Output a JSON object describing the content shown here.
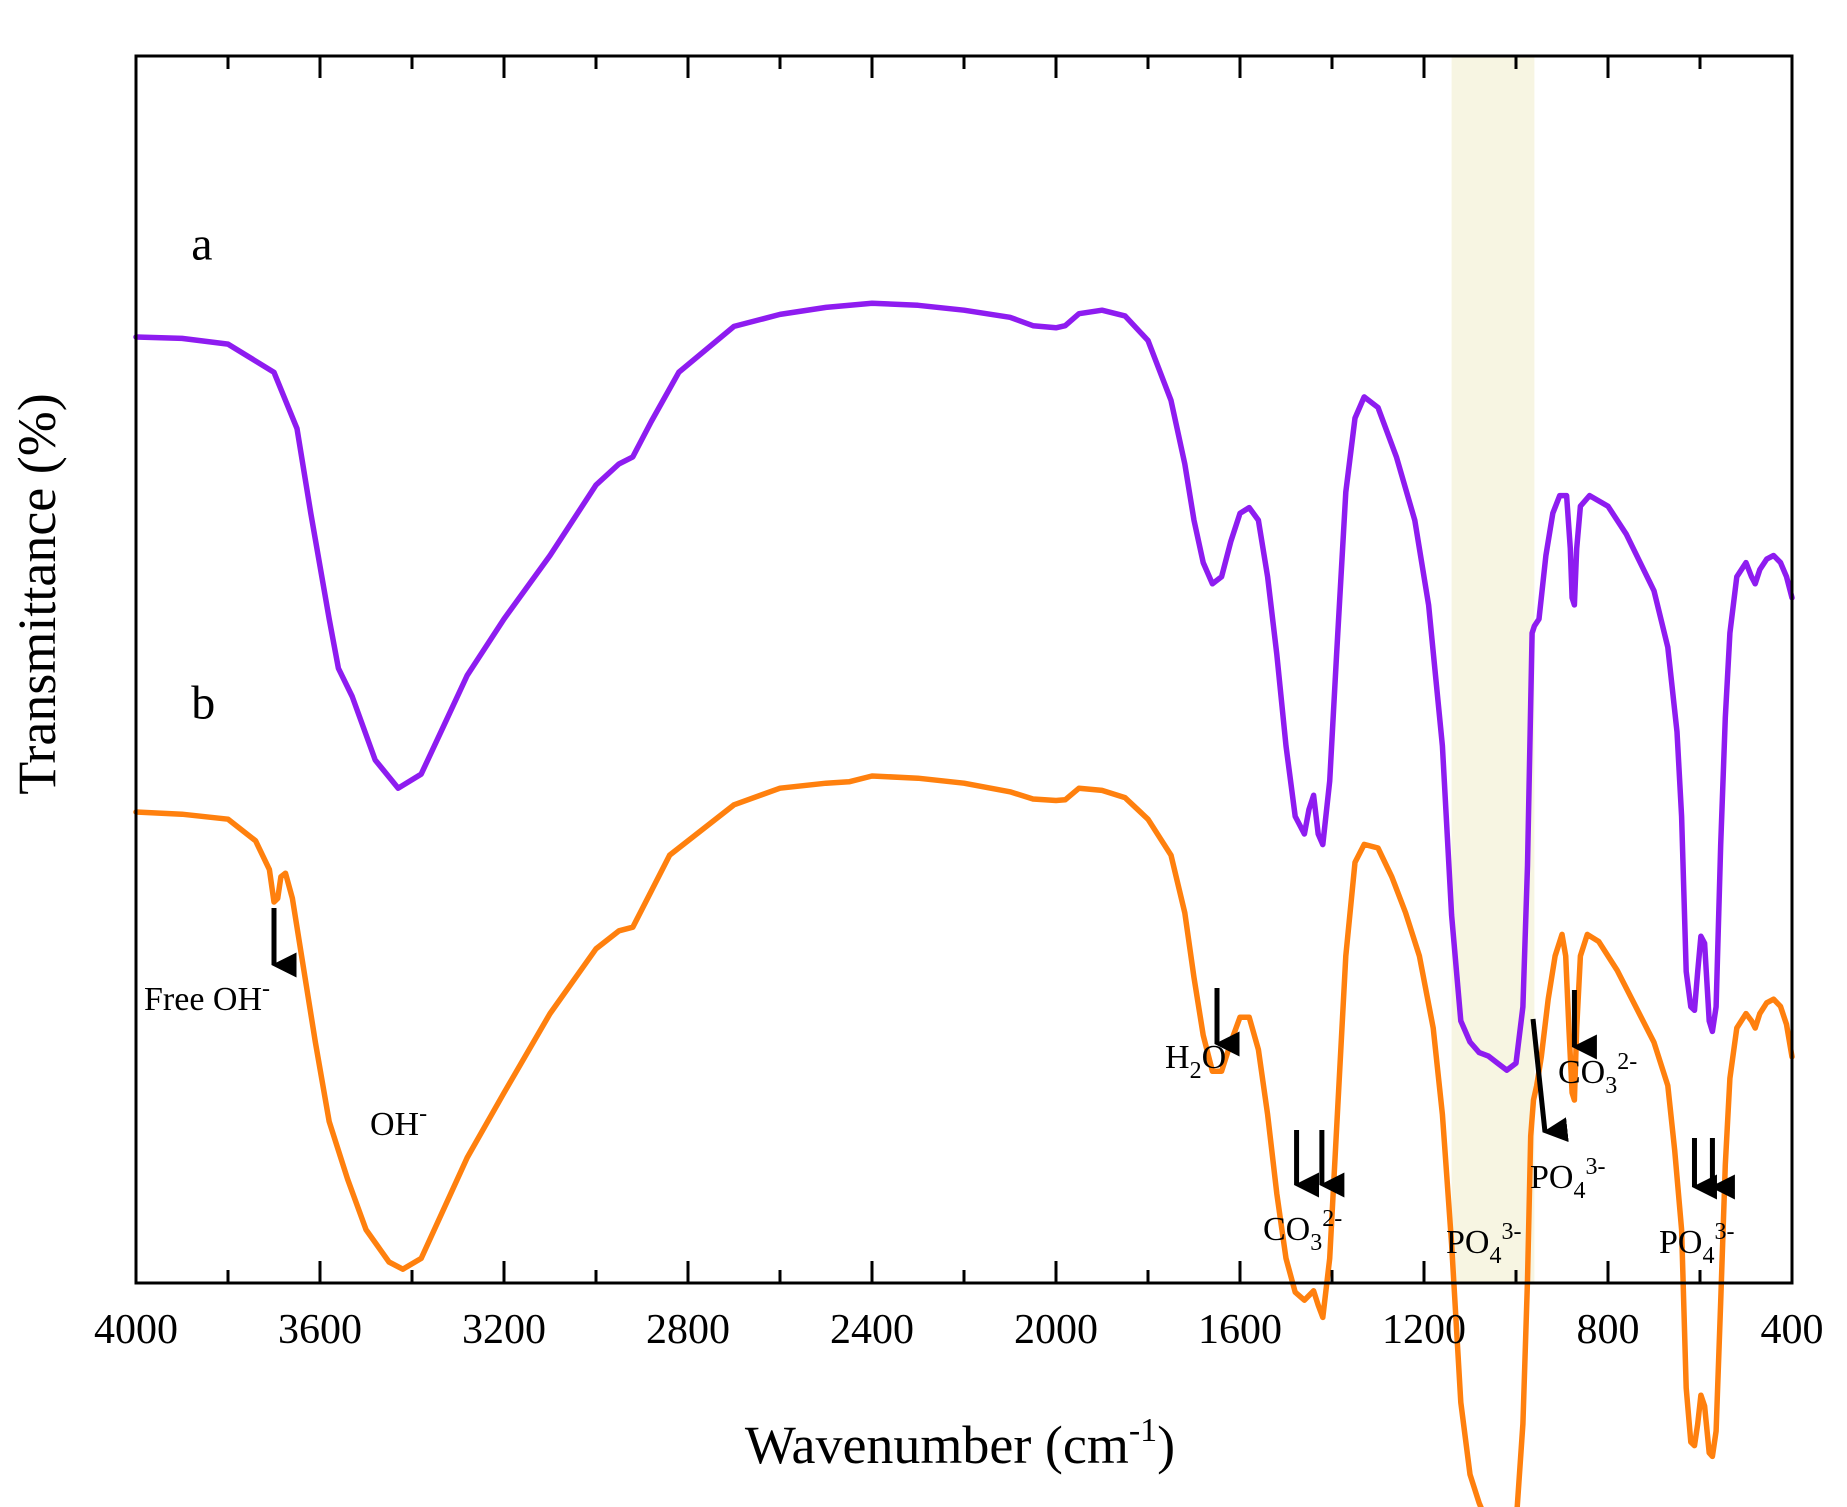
{
  "chart_data": {
    "type": "line",
    "xlabel": "Wavenumber (cm",
    "xlabel_sup": "-1",
    "xlabel_end": ")",
    "ylabel": "Transmittance (%)",
    "xlim": [
      4000,
      400
    ],
    "x_reversed": true,
    "x_ticks": [
      4000,
      3600,
      3200,
      2800,
      2400,
      2000,
      1600,
      1200,
      800,
      400
    ],
    "y_ticks_shown": false,
    "grid": false,
    "highlight_band": {
      "x_range": [
        1140,
        960
      ],
      "color": "#f7f5e2"
    },
    "series": [
      {
        "name": "a",
        "color": "#8e1cf0",
        "points": [
          [
            4000,
            100
          ],
          [
            3900,
            99.8
          ],
          [
            3800,
            99
          ],
          [
            3700,
            95
          ],
          [
            3650,
            87
          ],
          [
            3620,
            75
          ],
          [
            3580,
            60
          ],
          [
            3560,
            53
          ],
          [
            3530,
            49
          ],
          [
            3480,
            40
          ],
          [
            3430,
            36
          ],
          [
            3380,
            38
          ],
          [
            3330,
            45
          ],
          [
            3280,
            52
          ],
          [
            3200,
            60
          ],
          [
            3100,
            69
          ],
          [
            3000,
            79
          ],
          [
            2950,
            82
          ],
          [
            2920,
            83
          ],
          [
            2880,
            88
          ],
          [
            2820,
            95
          ],
          [
            2700,
            101.5
          ],
          [
            2600,
            103.2
          ],
          [
            2500,
            104.2
          ],
          [
            2400,
            104.8
          ],
          [
            2300,
            104.5
          ],
          [
            2200,
            103.8
          ],
          [
            2100,
            102.8
          ],
          [
            2050,
            101.6
          ],
          [
            2000,
            101.3
          ],
          [
            1980,
            101.6
          ],
          [
            1950,
            103.3
          ],
          [
            1900,
            103.8
          ],
          [
            1850,
            103
          ],
          [
            1800,
            99.5
          ],
          [
            1750,
            91
          ],
          [
            1720,
            82
          ],
          [
            1700,
            74
          ],
          [
            1680,
            68
          ],
          [
            1660,
            65
          ],
          [
            1640,
            66
          ],
          [
            1620,
            71
          ],
          [
            1600,
            75
          ],
          [
            1580,
            75.8
          ],
          [
            1560,
            74
          ],
          [
            1540,
            66
          ],
          [
            1520,
            55
          ],
          [
            1500,
            42
          ],
          [
            1480,
            32
          ],
          [
            1460,
            29.5
          ],
          [
            1450,
            33
          ],
          [
            1440,
            35
          ],
          [
            1430,
            29.5
          ],
          [
            1420,
            28
          ],
          [
            1405,
            37
          ],
          [
            1390,
            55
          ],
          [
            1370,
            78
          ],
          [
            1350,
            88.5
          ],
          [
            1330,
            91.5
          ],
          [
            1300,
            90
          ],
          [
            1260,
            83
          ],
          [
            1220,
            74
          ],
          [
            1190,
            62
          ],
          [
            1160,
            42
          ],
          [
            1140,
            18
          ],
          [
            1120,
            3
          ],
          [
            1100,
            0
          ],
          [
            1080,
            -1.5
          ],
          [
            1060,
            -2
          ],
          [
            1040,
            -3
          ],
          [
            1020,
            -4
          ],
          [
            1000,
            -3
          ],
          [
            985,
            5
          ],
          [
            975,
            25
          ],
          [
            968,
            48
          ],
          [
            965,
            58
          ],
          [
            960,
            59
          ],
          [
            950,
            60
          ],
          [
            935,
            69
          ],
          [
            920,
            75
          ],
          [
            905,
            77.5
          ],
          [
            890,
            77.5
          ],
          [
            882,
            70
          ],
          [
            878,
            63
          ],
          [
            873,
            62
          ],
          [
            868,
            70
          ],
          [
            860,
            76
          ],
          [
            840,
            77.5
          ],
          [
            800,
            76
          ],
          [
            760,
            72
          ],
          [
            700,
            64
          ],
          [
            670,
            56
          ],
          [
            650,
            44
          ],
          [
            640,
            32
          ],
          [
            630,
            10
          ],
          [
            620,
            5
          ],
          [
            612,
            4.5
          ],
          [
            605,
            10
          ],
          [
            598,
            15
          ],
          [
            590,
            14
          ],
          [
            580,
            3
          ],
          [
            573,
            1.5
          ],
          [
            565,
            5
          ],
          [
            555,
            28
          ],
          [
            545,
            46
          ],
          [
            535,
            58
          ],
          [
            520,
            66
          ],
          [
            500,
            68
          ],
          [
            488,
            66
          ],
          [
            480,
            65
          ],
          [
            470,
            67
          ],
          [
            455,
            68.5
          ],
          [
            440,
            69
          ],
          [
            425,
            68
          ],
          [
            412,
            66
          ],
          [
            400,
            63
          ]
        ]
      },
      {
        "name": "b",
        "color": "#ff800e",
        "points": [
          [
            4000,
            100
          ],
          [
            3900,
            99.7
          ],
          [
            3800,
            99
          ],
          [
            3740,
            96
          ],
          [
            3710,
            92
          ],
          [
            3700,
            87.5
          ],
          [
            3692,
            88
          ],
          [
            3685,
            91
          ],
          [
            3675,
            91.5
          ],
          [
            3660,
            88
          ],
          [
            3640,
            80
          ],
          [
            3610,
            68
          ],
          [
            3580,
            57
          ],
          [
            3540,
            49
          ],
          [
            3500,
            42
          ],
          [
            3450,
            37.5
          ],
          [
            3420,
            36.5
          ],
          [
            3380,
            38
          ],
          [
            3330,
            45
          ],
          [
            3280,
            52
          ],
          [
            3200,
            61
          ],
          [
            3100,
            72
          ],
          [
            3000,
            81
          ],
          [
            2950,
            83.5
          ],
          [
            2920,
            84
          ],
          [
            2880,
            89
          ],
          [
            2840,
            94
          ],
          [
            2700,
            101
          ],
          [
            2600,
            103.3
          ],
          [
            2500,
            104
          ],
          [
            2450,
            104.2
          ],
          [
            2400,
            105
          ],
          [
            2300,
            104.7
          ],
          [
            2200,
            104
          ],
          [
            2100,
            102.8
          ],
          [
            2050,
            101.8
          ],
          [
            2000,
            101.6
          ],
          [
            1980,
            101.7
          ],
          [
            1950,
            103.3
          ],
          [
            1900,
            103
          ],
          [
            1850,
            102
          ],
          [
            1800,
            99
          ],
          [
            1750,
            94
          ],
          [
            1720,
            86
          ],
          [
            1700,
            77
          ],
          [
            1680,
            69
          ],
          [
            1660,
            64
          ],
          [
            1640,
            64
          ],
          [
            1620,
            68
          ],
          [
            1600,
            71.5
          ],
          [
            1580,
            71.5
          ],
          [
            1560,
            67
          ],
          [
            1540,
            58
          ],
          [
            1520,
            47
          ],
          [
            1500,
            38
          ],
          [
            1480,
            33.3
          ],
          [
            1460,
            32.2
          ],
          [
            1440,
            33.5
          ],
          [
            1430,
            31.5
          ],
          [
            1420,
            29.8
          ],
          [
            1405,
            38
          ],
          [
            1390,
            56
          ],
          [
            1370,
            80
          ],
          [
            1350,
            93
          ],
          [
            1330,
            95.5
          ],
          [
            1300,
            95
          ],
          [
            1270,
            91
          ],
          [
            1240,
            86
          ],
          [
            1210,
            80
          ],
          [
            1180,
            70
          ],
          [
            1160,
            58
          ],
          [
            1140,
            40
          ],
          [
            1120,
            18
          ],
          [
            1100,
            8
          ],
          [
            1080,
            4
          ],
          [
            1060,
            1
          ],
          [
            1040,
            -1
          ],
          [
            1020,
            -1.5
          ],
          [
            1000,
            1
          ],
          [
            985,
            15
          ],
          [
            975,
            35
          ],
          [
            968,
            55
          ],
          [
            962,
            60
          ],
          [
            955,
            62
          ],
          [
            945,
            66
          ],
          [
            930,
            74
          ],
          [
            915,
            80
          ],
          [
            900,
            83
          ],
          [
            892,
            80
          ],
          [
            885,
            70
          ],
          [
            878,
            61
          ],
          [
            873,
            60
          ],
          [
            868,
            70
          ],
          [
            860,
            80
          ],
          [
            845,
            83
          ],
          [
            820,
            82
          ],
          [
            780,
            78
          ],
          [
            740,
            73
          ],
          [
            700,
            68
          ],
          [
            670,
            62
          ],
          [
            655,
            53
          ],
          [
            640,
            42
          ],
          [
            630,
            20
          ],
          [
            620,
            12.5
          ],
          [
            612,
            12
          ],
          [
            605,
            15
          ],
          [
            598,
            19
          ],
          [
            590,
            17.5
          ],
          [
            580,
            11
          ],
          [
            573,
            10.5
          ],
          [
            565,
            14
          ],
          [
            555,
            32
          ],
          [
            545,
            51
          ],
          [
            535,
            63
          ],
          [
            520,
            70
          ],
          [
            500,
            72
          ],
          [
            488,
            71
          ],
          [
            480,
            70
          ],
          [
            470,
            72
          ],
          [
            455,
            73.5
          ],
          [
            440,
            74
          ],
          [
            425,
            73
          ],
          [
            412,
            70.5
          ],
          [
            400,
            66
          ]
        ]
      }
    ],
    "series_labels": [
      {
        "text": "a",
        "x": 3880,
        "y": 111
      },
      {
        "text": "b",
        "x": 3880,
        "y": 113
      }
    ],
    "annotations": [
      {
        "id": "free-oh",
        "text": "Free OH",
        "sup": "-",
        "arrow_x": 3700
      },
      {
        "id": "oh",
        "text": "OH",
        "sup": "-"
      },
      {
        "id": "h2o",
        "pre": "H",
        "sub": "2",
        "post": "O",
        "arrow_x": 1650
      },
      {
        "id": "co3-left",
        "pre": "CO",
        "sub": "3",
        "sup": "2-",
        "arrows_x": [
          1477,
          1422
        ]
      },
      {
        "id": "po4-center",
        "pre": "PO",
        "sub": "4",
        "sup": "3-"
      },
      {
        "id": "po4-right",
        "pre": "PO",
        "sub": "4",
        "sup": "3-",
        "arrow_x": 963
      },
      {
        "id": "co3-right",
        "pre": "CO",
        "sub": "3",
        "sup": "2-",
        "arrow_x": 873
      },
      {
        "id": "po4-far",
        "pre": "PO",
        "sub": "4",
        "sup": "3-",
        "arrows_x": [
          612,
          573
        ]
      }
    ]
  }
}
